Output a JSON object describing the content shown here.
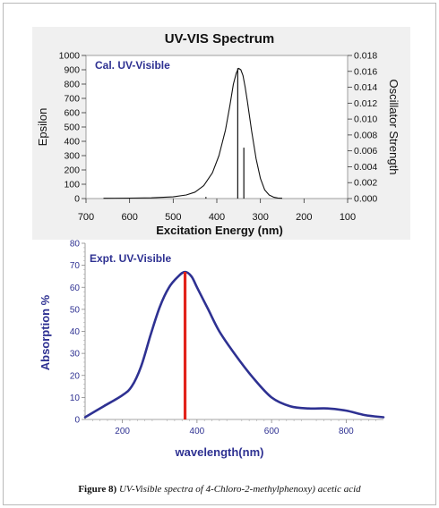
{
  "chart_data": [
    {
      "type": "line",
      "title": "UV-VIS Spectrum",
      "annotation": "Cal. UV-Visible",
      "xlabel": "Excitation Energy (nm)",
      "ylabel_left": "Epsilon",
      "ylabel_right": "Oscillator Strength",
      "x_reversed": true,
      "xlim": [
        700,
        100
      ],
      "ylim_left": [
        0,
        1000
      ],
      "ylim_right": [
        0,
        0.018
      ],
      "x_ticks": [
        "700",
        "600",
        "500",
        "400",
        "300",
        "200",
        "100"
      ],
      "y_left_ticks": [
        "0",
        "100",
        "200",
        "300",
        "400",
        "500",
        "600",
        "700",
        "800",
        "900",
        "1000"
      ],
      "y_right_ticks": [
        "0.000",
        "0.002",
        "0.004",
        "0.006",
        "0.008",
        "0.010",
        "0.012",
        "0.014",
        "0.016",
        "0.018"
      ],
      "colors": {
        "curve": "#111111",
        "sticks": "#111111",
        "title": "#111111",
        "annotation": "#2e3192",
        "background": "#f0f0f0"
      },
      "series": [
        {
          "values_x": [
            660,
            600,
            550,
            500,
            470,
            450,
            430,
            410,
            395,
            380,
            370,
            362,
            355,
            350,
            345,
            340,
            335,
            330,
            320,
            310,
            300,
            290,
            280,
            270,
            260,
            250
          ],
          "values_y": [
            2,
            3,
            5,
            12,
            25,
            45,
            90,
            180,
            300,
            480,
            650,
            800,
            880,
            910,
            900,
            860,
            780,
            680,
            470,
            280,
            140,
            60,
            25,
            10,
            4,
            2
          ]
        }
      ],
      "oscillator_sticks": [
        {
          "x": 352,
          "strength": 0.0164
        },
        {
          "x": 338,
          "strength": 0.0064
        },
        {
          "x": 425,
          "strength": 0.0002
        }
      ]
    },
    {
      "type": "line",
      "annotation": "Expt. UV-Visible",
      "xlabel": "wavelength(nm)",
      "ylabel": "Absorption %",
      "xlim": [
        100,
        900
      ],
      "ylim": [
        0,
        80
      ],
      "x_ticks": [
        "200",
        "400",
        "600",
        "800"
      ],
      "y_ticks": [
        "0",
        "10",
        "20",
        "30",
        "40",
        "50",
        "60",
        "70",
        "80"
      ],
      "colors": {
        "curve": "#2e3192",
        "marker": "#e2231a",
        "labels": "#2e3192"
      },
      "series": [
        {
          "x": [
            100,
            150,
            200,
            225,
            250,
            275,
            300,
            325,
            350,
            368,
            385,
            400,
            430,
            460,
            500,
            550,
            600,
            650,
            700,
            750,
            800,
            850,
            900
          ],
          "y": [
            1,
            6,
            11,
            15,
            24,
            38,
            51,
            60,
            65,
            67,
            65,
            60,
            50,
            40,
            30,
            19,
            10,
            6,
            5,
            5,
            4,
            2,
            1
          ]
        }
      ],
      "peak_marker": {
        "x": 368,
        "y": 67
      }
    }
  ],
  "caption": {
    "label": "Figure 8)",
    "text": " UV-Visible spectra of 4-Chloro-2-methylphenoxy) acetic acid"
  }
}
